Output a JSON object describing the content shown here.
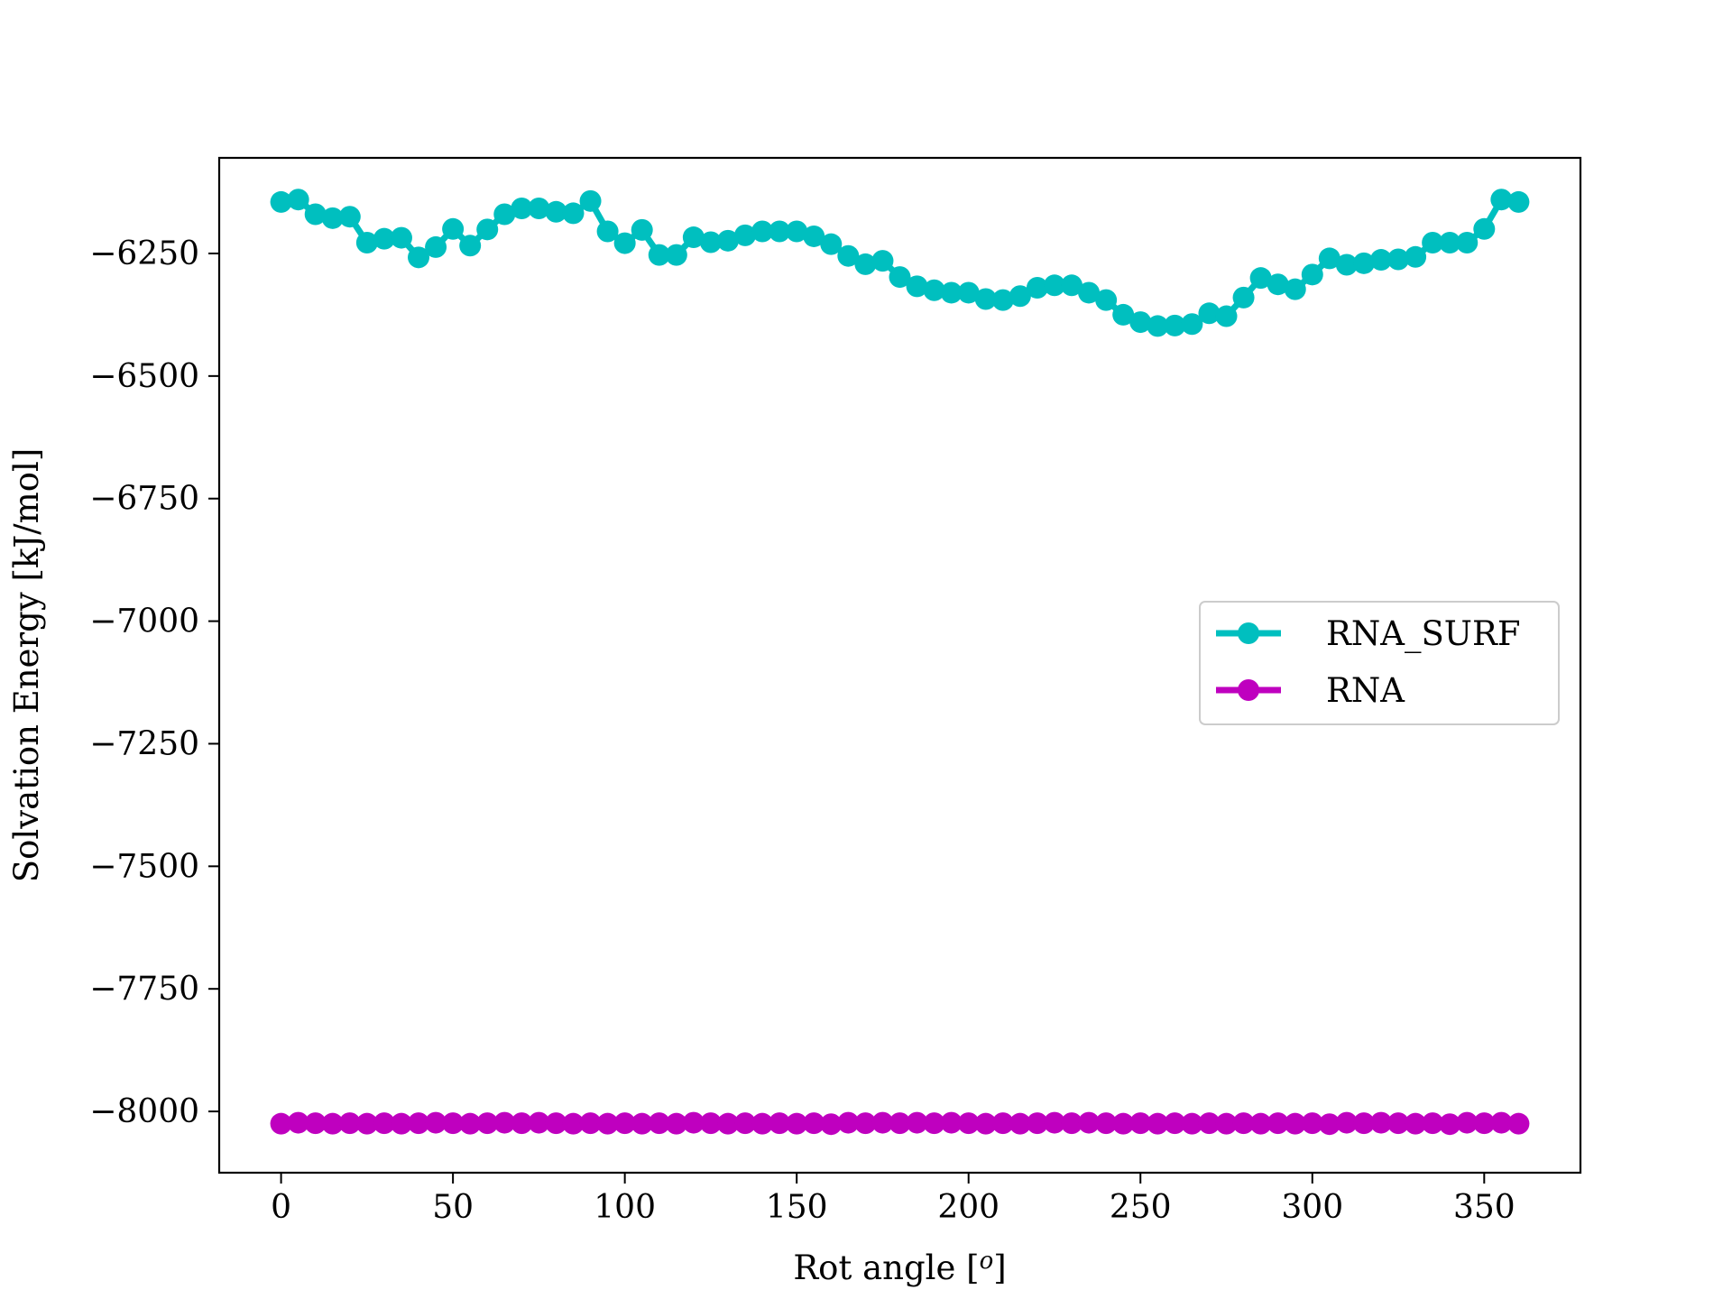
{
  "chart_data": {
    "type": "line",
    "title": "",
    "xlabel": "Rot angle [",
    "xlabel_sup": "o",
    "xlabel_end": "]",
    "ylabel": "Solvation Energy [kJ/mol]",
    "xlim": [
      -18,
      378
    ],
    "ylim": [
      -8125,
      -6055
    ],
    "xticks": [
      0,
      50,
      100,
      150,
      200,
      250,
      300,
      350
    ],
    "yticks": [
      -6250,
      -6500,
      -6750,
      -7000,
      -7250,
      -7500,
      -7750,
      -8000
    ],
    "xtick_labels": [
      "0",
      "50",
      "100",
      "150",
      "200",
      "250",
      "300",
      "350"
    ],
    "ytick_labels": [
      "−6250",
      "−6500",
      "−6750",
      "−7000",
      "−7250",
      "−7500",
      "−7750",
      "−8000"
    ],
    "grid": false,
    "legend_position": "center-right",
    "x": [
      0,
      5,
      10,
      15,
      20,
      25,
      30,
      35,
      40,
      45,
      50,
      55,
      60,
      65,
      70,
      75,
      80,
      85,
      90,
      95,
      100,
      105,
      110,
      115,
      120,
      125,
      130,
      135,
      140,
      145,
      150,
      155,
      160,
      165,
      170,
      175,
      180,
      185,
      190,
      195,
      200,
      205,
      210,
      215,
      220,
      225,
      230,
      235,
      240,
      245,
      250,
      255,
      260,
      265,
      270,
      275,
      280,
      285,
      290,
      295,
      300,
      305,
      310,
      315,
      320,
      325,
      330,
      335,
      340,
      345,
      350,
      355,
      360
    ],
    "series": [
      {
        "name": "RNA_SURF",
        "color": "#00bfbf",
        "values": [
          -6145,
          -6140,
          -6170,
          -6178,
          -6175,
          -6228,
          -6220,
          -6218,
          -6258,
          -6237,
          -6200,
          -6234,
          -6201,
          -6170,
          -6158,
          -6158,
          -6165,
          -6168,
          -6143,
          -6205,
          -6229,
          -6202,
          -6253,
          -6253,
          -6217,
          -6227,
          -6224,
          -6213,
          -6205,
          -6205,
          -6205,
          -6215,
          -6231,
          -6255,
          -6272,
          -6265,
          -6298,
          -6317,
          -6325,
          -6330,
          -6330,
          -6343,
          -6345,
          -6337,
          -6320,
          -6315,
          -6315,
          -6330,
          -6345,
          -6375,
          -6390,
          -6398,
          -6397,
          -6394,
          -6372,
          -6378,
          -6340,
          -6300,
          -6313,
          -6323,
          -6293,
          -6260,
          -6273,
          -6270,
          -6263,
          -6262,
          -6257,
          -6228,
          -6228,
          -6228,
          -6200,
          -6140,
          -6145
        ]
      },
      {
        "name": "RNA",
        "color": "#bf00bf",
        "values": [
          -8025,
          -8023,
          -8024,
          -8025,
          -8024,
          -8025,
          -8024,
          -8025,
          -8024,
          -8023,
          -8024,
          -8025,
          -8024,
          -8023,
          -8024,
          -8023,
          -8024,
          -8025,
          -8024,
          -8025,
          -8024,
          -8025,
          -8024,
          -8025,
          -8023,
          -8024,
          -8025,
          -8024,
          -8025,
          -8024,
          -8025,
          -8024,
          -8026,
          -8023,
          -8024,
          -8023,
          -8024,
          -8023,
          -8024,
          -8023,
          -8024,
          -8025,
          -8024,
          -8025,
          -8024,
          -8023,
          -8024,
          -8023,
          -8024,
          -8025,
          -8024,
          -8025,
          -8024,
          -8025,
          -8024,
          -8025,
          -8024,
          -8025,
          -8024,
          -8025,
          -8024,
          -8026,
          -8023,
          -8024,
          -8023,
          -8024,
          -8025,
          -8024,
          -8026,
          -8023,
          -8024,
          -8023,
          -8025
        ]
      }
    ]
  }
}
